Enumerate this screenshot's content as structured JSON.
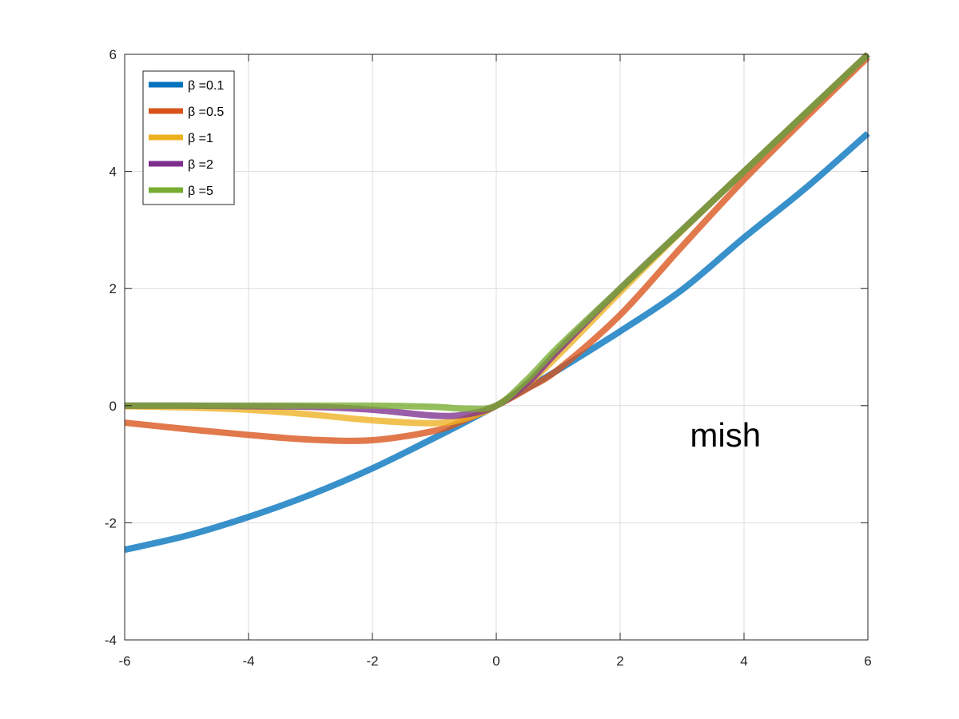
{
  "chart_data": {
    "type": "line",
    "title": "",
    "xlabel": "",
    "ylabel": "",
    "xlim": [
      -6,
      6
    ],
    "ylim": [
      -4,
      6
    ],
    "xticks": [
      -6,
      -4,
      -2,
      0,
      2,
      4,
      6
    ],
    "yticks": [
      -4,
      -2,
      0,
      2,
      4,
      6
    ],
    "xtick_labels": [
      "-6",
      "-4",
      "-2",
      "0",
      "2",
      "4",
      "6"
    ],
    "ytick_labels": [
      "-4",
      "-2",
      "0",
      "2",
      "4",
      "6"
    ],
    "grid": true,
    "legend_position": "top-left",
    "annotation": {
      "text": "mish",
      "x": 3.7,
      "y": -0.7
    },
    "x": [
      -6,
      -5,
      -4,
      -3,
      -2,
      -1,
      -0.5,
      0,
      0.5,
      1,
      2,
      3,
      4,
      5,
      6
    ],
    "series": [
      {
        "name": "β =0.1",
        "color": "#0072BD",
        "values": [
          -2.46,
          -2.22,
          -1.9,
          -1.52,
          -1.07,
          -0.55,
          -0.28,
          0,
          0.3,
          0.61,
          1.27,
          1.98,
          2.87,
          3.72,
          4.65
        ]
      },
      {
        "name": "β =0.5",
        "color": "#D95319",
        "values": [
          -0.29,
          -0.4,
          -0.5,
          -0.58,
          -0.59,
          -0.43,
          -0.24,
          0,
          0.29,
          0.62,
          1.55,
          2.72,
          3.86,
          4.92,
          5.95
        ]
      },
      {
        "name": "β =1",
        "color": "#EDB120",
        "values": [
          -0.01,
          -0.03,
          -0.07,
          -0.15,
          -0.25,
          -0.3,
          -0.22,
          0,
          0.37,
          0.86,
          1.94,
          2.99,
          4.0,
          5.0,
          6.0
        ]
      },
      {
        "name": "β =2",
        "color": "#7E2F8E",
        "values": [
          0,
          0,
          -0.01,
          -0.02,
          -0.07,
          -0.17,
          -0.15,
          0,
          0.38,
          0.94,
          2.0,
          3.0,
          4.0,
          5.0,
          6.0
        ]
      },
      {
        "name": "β =5",
        "color": "#77AC30",
        "values": [
          0,
          0,
          0,
          0,
          0,
          -0.02,
          -0.05,
          0,
          0.45,
          1.0,
          2.0,
          3.0,
          4.0,
          5.0,
          6.0
        ]
      }
    ]
  }
}
